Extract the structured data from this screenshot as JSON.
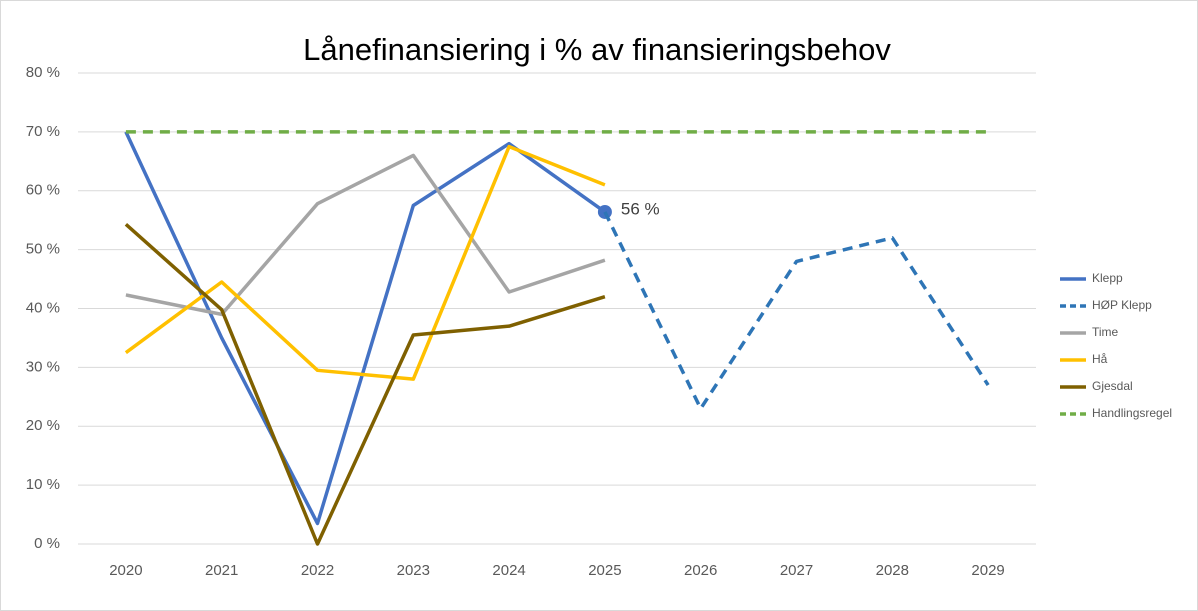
{
  "chart_data": {
    "type": "line",
    "title": "Lånefinansiering i % av finansieringsbehov",
    "categories": [
      "2020",
      "2021",
      "2022",
      "2023",
      "2024",
      "2025",
      "2026",
      "2027",
      "2028",
      "2029"
    ],
    "ylim": [
      0,
      80
    ],
    "yticks": [
      {
        "value": 0,
        "label": "0 %"
      },
      {
        "value": 10,
        "label": "10 %"
      },
      {
        "value": 20,
        "label": "20 %"
      },
      {
        "value": 30,
        "label": "30 %"
      },
      {
        "value": 40,
        "label": "40 %"
      },
      {
        "value": 50,
        "label": "50 %"
      },
      {
        "value": 60,
        "label": "60 %"
      },
      {
        "value": 70,
        "label": "70 %"
      },
      {
        "value": 80,
        "label": "80 %"
      }
    ],
    "grid": true,
    "legend": "right",
    "series": [
      {
        "name": "Klepp",
        "color": "#4472c4",
        "dashed": false,
        "values": [
          70,
          35,
          3.5,
          57.5,
          68,
          56.4,
          null,
          null,
          null,
          null
        ],
        "value_labels": [
          null,
          null,
          null,
          null,
          null,
          "56 %",
          null,
          null,
          null,
          null
        ]
      },
      {
        "name": "HØP Klepp",
        "color": "#2e75b6",
        "dashed": true,
        "values": [
          null,
          null,
          null,
          null,
          null,
          56.4,
          23,
          48,
          52,
          27
        ]
      },
      {
        "name": "Time",
        "color": "#a5a5a5",
        "dashed": false,
        "values": [
          42.3,
          39,
          57.8,
          66,
          42.8,
          48.2,
          null,
          null,
          null,
          null
        ]
      },
      {
        "name": "Hå",
        "color": "#ffc000",
        "dashed": false,
        "values": [
          32.5,
          44.5,
          29.5,
          28,
          67.5,
          61,
          null,
          null,
          null,
          null
        ]
      },
      {
        "name": "Gjesdal",
        "color": "#7f6000",
        "dashed": false,
        "values": [
          54.3,
          39.8,
          0,
          35.5,
          37,
          42,
          null,
          null,
          null,
          null
        ]
      },
      {
        "name": "Handlingsregel",
        "color": "#70ad47",
        "dashed": true,
        "values": [
          70,
          70,
          70,
          70,
          70,
          70,
          70,
          70,
          70,
          70
        ]
      }
    ]
  }
}
